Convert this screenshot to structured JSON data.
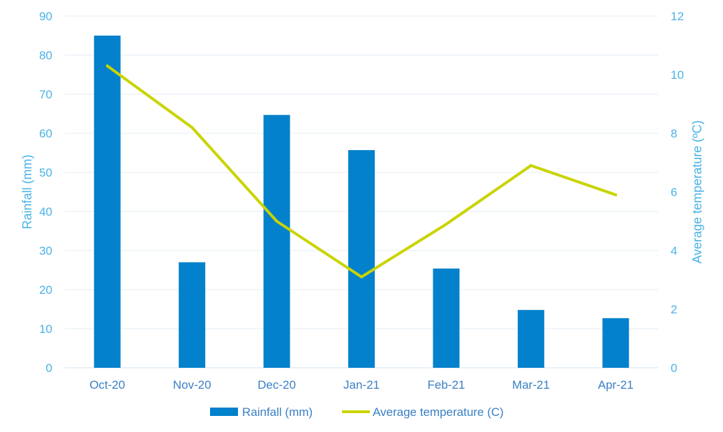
{
  "chart_data": {
    "type": "bar",
    "categories": [
      "Oct-20",
      "Nov-20",
      "Dec-20",
      "Jan-21",
      "Feb-21",
      "Mar-21",
      "Apr-21"
    ],
    "series": [
      {
        "name": "Rainfall (mm)",
        "type": "bar",
        "axis": "left",
        "color": "#0481cc",
        "values": [
          85,
          27,
          64.7,
          55.7,
          25.4,
          14.8,
          12.7
        ]
      },
      {
        "name": "Average temperature (C)",
        "type": "line",
        "axis": "right",
        "color": "#c9d400",
        "values": [
          10.3,
          8.2,
          5.0,
          3.1,
          4.9,
          6.9,
          5.9
        ]
      }
    ],
    "title": "",
    "xlabel": "",
    "ylabel": "Rainfall (mm)",
    "y2label": "Average temperature (ºC)",
    "ylim": [
      0,
      90
    ],
    "yticks": [
      0,
      10,
      20,
      30,
      40,
      50,
      60,
      70,
      80,
      90
    ],
    "y2lim": [
      0,
      12
    ],
    "y2ticks": [
      0,
      2,
      4,
      6,
      8,
      10,
      12
    ],
    "grid": true,
    "legend": "bottom-center"
  }
}
